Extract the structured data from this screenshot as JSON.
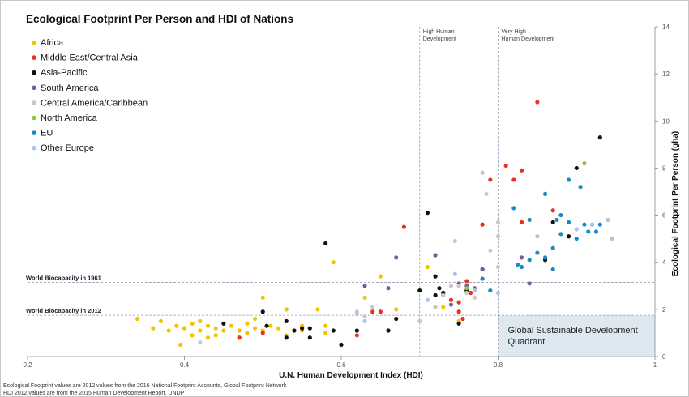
{
  "chart_data": {
    "type": "scatter",
    "title": "Ecological Footprint Per Person and HDI of Nations",
    "xlabel": "U.N. Human Development Index (HDI)",
    "ylabel": "Ecological Footprint Per Person (gha)",
    "xlim": [
      0.2,
      1.0
    ],
    "ylim": [
      0,
      14
    ],
    "xticks": [
      0.2,
      0.4,
      0.6,
      0.8,
      1
    ],
    "xtick_labels": [
      "0.2",
      "0.4",
      "0.6",
      "0.8",
      "1"
    ],
    "yticks": [
      0,
      2,
      4,
      6,
      8,
      10,
      12,
      14
    ],
    "ytick_labels": [
      "0",
      "2",
      "4",
      "6",
      "8",
      "10",
      "12",
      "14"
    ],
    "grid": false,
    "legend_position": "top-left",
    "reference_lines": [
      {
        "orientation": "horizontal",
        "value": 3.15,
        "label": "World Biocapacity in 1961"
      },
      {
        "orientation": "horizontal",
        "value": 1.75,
        "label": "World Biocapacity in 2012"
      },
      {
        "orientation": "vertical",
        "value": 0.7,
        "label": "High Human Development"
      },
      {
        "orientation": "vertical",
        "value": 0.8,
        "label": "Very High Human Development"
      }
    ],
    "quadrant": {
      "x_from": 0.8,
      "x_to": 1.0,
      "y_from": 0,
      "y_to": 1.75,
      "label": "Global Sustainable Development Quadrant",
      "color": "#dde8f0"
    },
    "series": [
      {
        "name": "Africa",
        "color": "#f5c400",
        "points": [
          [
            0.34,
            1.6
          ],
          [
            0.36,
            1.2
          ],
          [
            0.37,
            1.5
          ],
          [
            0.38,
            1.1
          ],
          [
            0.39,
            1.3
          ],
          [
            0.395,
            0.5
          ],
          [
            0.4,
            1.2
          ],
          [
            0.41,
            1.4
          ],
          [
            0.41,
            0.9
          ],
          [
            0.42,
            1.5
          ],
          [
            0.42,
            1.1
          ],
          [
            0.43,
            1.3
          ],
          [
            0.43,
            0.8
          ],
          [
            0.44,
            1.2
          ],
          [
            0.44,
            0.9
          ],
          [
            0.45,
            1.1
          ],
          [
            0.46,
            1.3
          ],
          [
            0.47,
            1.1
          ],
          [
            0.47,
            0.8
          ],
          [
            0.48,
            1.4
          ],
          [
            0.48,
            1.0
          ],
          [
            0.49,
            1.2
          ],
          [
            0.49,
            1.6
          ],
          [
            0.5,
            2.5
          ],
          [
            0.5,
            1.1
          ],
          [
            0.51,
            1.3
          ],
          [
            0.52,
            1.2
          ],
          [
            0.53,
            0.9
          ],
          [
            0.53,
            2.0
          ],
          [
            0.55,
            1.1
          ],
          [
            0.55,
            1.3
          ],
          [
            0.57,
            2.0
          ],
          [
            0.58,
            1.0
          ],
          [
            0.58,
            1.3
          ],
          [
            0.59,
            4.0
          ],
          [
            0.63,
            2.5
          ],
          [
            0.65,
            3.4
          ],
          [
            0.67,
            2.0
          ],
          [
            0.71,
            3.8
          ],
          [
            0.73,
            2.1
          ],
          [
            0.75,
            1.5
          ]
        ]
      },
      {
        "name": "Middle East/Central Asia",
        "color": "#e8321e",
        "points": [
          [
            0.47,
            0.8
          ],
          [
            0.5,
            1.0
          ],
          [
            0.62,
            0.9
          ],
          [
            0.64,
            1.9
          ],
          [
            0.65,
            1.9
          ],
          [
            0.68,
            5.5
          ],
          [
            0.74,
            2.4
          ],
          [
            0.75,
            2.3
          ],
          [
            0.75,
            1.9
          ],
          [
            0.755,
            1.6
          ],
          [
            0.76,
            3.2
          ],
          [
            0.765,
            2.7
          ],
          [
            0.78,
            5.6
          ],
          [
            0.79,
            7.5
          ],
          [
            0.81,
            8.1
          ],
          [
            0.82,
            7.5
          ],
          [
            0.83,
            5.7
          ],
          [
            0.83,
            7.9
          ],
          [
            0.85,
            10.8
          ],
          [
            0.87,
            6.2
          ]
        ]
      },
      {
        "name": "Asia-Pacific",
        "color": "#111111",
        "points": [
          [
            0.45,
            1.4
          ],
          [
            0.5,
            1.9
          ],
          [
            0.505,
            1.3
          ],
          [
            0.53,
            1.5
          ],
          [
            0.53,
            0.8
          ],
          [
            0.54,
            1.1
          ],
          [
            0.55,
            1.2
          ],
          [
            0.56,
            0.8
          ],
          [
            0.56,
            1.2
          ],
          [
            0.58,
            4.8
          ],
          [
            0.59,
            1.1
          ],
          [
            0.6,
            0.5
          ],
          [
            0.62,
            1.1
          ],
          [
            0.66,
            1.1
          ],
          [
            0.67,
            1.6
          ],
          [
            0.7,
            2.8
          ],
          [
            0.71,
            6.1
          ],
          [
            0.72,
            2.6
          ],
          [
            0.72,
            3.4
          ],
          [
            0.725,
            2.9
          ],
          [
            0.73,
            2.7
          ],
          [
            0.75,
            1.4
          ],
          [
            0.76,
            2.8
          ],
          [
            0.78,
            3.7
          ],
          [
            0.86,
            4.1
          ],
          [
            0.87,
            5.7
          ],
          [
            0.89,
            5.1
          ],
          [
            0.9,
            8.0
          ],
          [
            0.93,
            9.3
          ]
        ]
      },
      {
        "name": "South America",
        "color": "#7a5c9a",
        "points": [
          [
            0.63,
            3.0
          ],
          [
            0.66,
            2.9
          ],
          [
            0.67,
            4.2
          ],
          [
            0.72,
            4.3
          ],
          [
            0.73,
            2.6
          ],
          [
            0.74,
            2.2
          ],
          [
            0.75,
            3.1
          ],
          [
            0.76,
            3.0
          ],
          [
            0.77,
            2.9
          ],
          [
            0.78,
            3.7
          ],
          [
            0.83,
            4.2
          ],
          [
            0.84,
            3.1
          ]
        ]
      },
      {
        "name": "Central America/Caribbean",
        "color": "#c8c8c8",
        "points": [
          [
            0.42,
            0.6
          ],
          [
            0.62,
            1.9
          ],
          [
            0.63,
            1.7
          ],
          [
            0.64,
            2.1
          ],
          [
            0.7,
            1.5
          ],
          [
            0.72,
            2.1
          ],
          [
            0.73,
            2.6
          ],
          [
            0.74,
            3.0
          ],
          [
            0.745,
            4.9
          ],
          [
            0.75,
            3.0
          ],
          [
            0.76,
            2.7
          ],
          [
            0.77,
            2.5
          ],
          [
            0.78,
            7.8
          ],
          [
            0.785,
            6.9
          ],
          [
            0.79,
            4.5
          ],
          [
            0.8,
            5.1
          ],
          [
            0.8,
            5.7
          ],
          [
            0.8,
            3.8
          ]
        ]
      },
      {
        "name": "North America",
        "color": "#8dc63f",
        "points": [
          [
            0.76,
            2.9
          ],
          [
            0.91,
            8.2
          ]
        ]
      },
      {
        "name": "EU",
        "color": "#1a8ac6",
        "points": [
          [
            0.78,
            3.3
          ],
          [
            0.79,
            2.8
          ],
          [
            0.82,
            6.3
          ],
          [
            0.825,
            3.9
          ],
          [
            0.83,
            3.8
          ],
          [
            0.84,
            5.8
          ],
          [
            0.84,
            4.1
          ],
          [
            0.85,
            4.4
          ],
          [
            0.86,
            6.9
          ],
          [
            0.86,
            4.2
          ],
          [
            0.87,
            4.6
          ],
          [
            0.87,
            3.7
          ],
          [
            0.875,
            5.8
          ],
          [
            0.88,
            6.0
          ],
          [
            0.88,
            5.2
          ],
          [
            0.89,
            7.5
          ],
          [
            0.89,
            5.7
          ],
          [
            0.9,
            5.0
          ],
          [
            0.905,
            7.2
          ],
          [
            0.91,
            5.6
          ],
          [
            0.915,
            5.3
          ],
          [
            0.92,
            5.6
          ],
          [
            0.925,
            5.3
          ],
          [
            0.93,
            5.6
          ]
        ]
      },
      {
        "name": "Other Europe",
        "color": "#a9c6e8",
        "points": [
          [
            0.62,
            1.8
          ],
          [
            0.63,
            1.5
          ],
          [
            0.71,
            2.4
          ],
          [
            0.745,
            3.5
          ],
          [
            0.77,
            2.8
          ],
          [
            0.8,
            2.7
          ],
          [
            0.85,
            5.1
          ],
          [
            0.9,
            5.4
          ],
          [
            0.92,
            5.6
          ],
          [
            0.94,
            5.8
          ],
          [
            0.945,
            5.0
          ]
        ]
      }
    ]
  },
  "footnotes": [
    "Ecological Footprint values are 2012 values from the 2016 National Footprint Accounts, Global Footprint Network",
    "HDI 2012 values are from the 2015 Human Development Report, UNDP"
  ]
}
